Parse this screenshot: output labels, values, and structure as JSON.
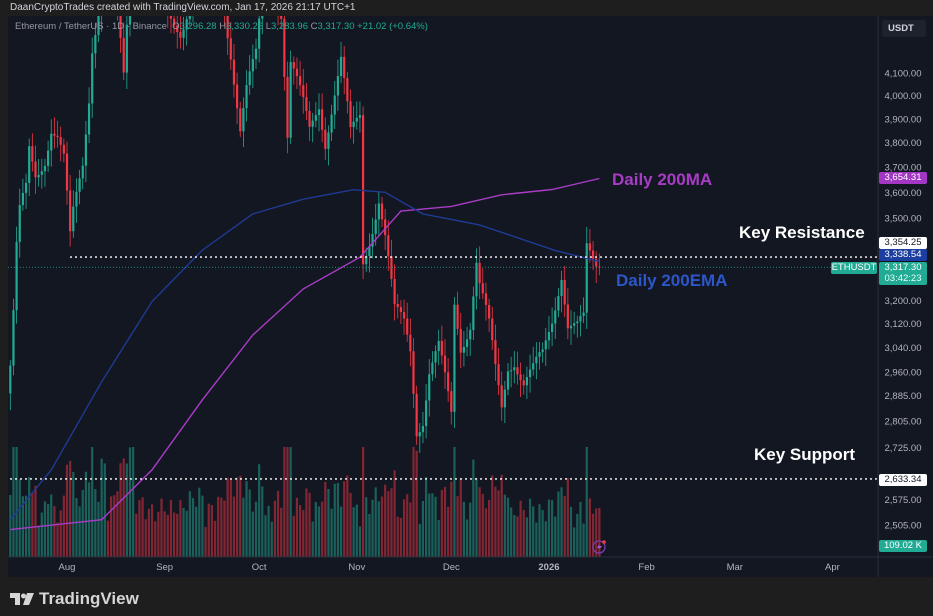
{
  "header": {
    "credit": "DaanCryptoTrades created with TradingView.com, Jan 17, 2026 21:17 UTC+1"
  },
  "legend": {
    "symbol": "Ethereum / TetherUS · 1D · Binance",
    "open_label": "O",
    "open": "3,296.28",
    "high_label": "H",
    "high": "3,330.26",
    "low_label": "L",
    "low": "3,283.96",
    "close_label": "C",
    "close": "3,317.30",
    "change": "+21.02 (+0.64%)"
  },
  "currency_button": "USDT",
  "annotations": {
    "ma200": "Daily 200MA",
    "ema200": "Daily 200EMA",
    "resistance": "Key Resistance",
    "support": "Key Support"
  },
  "badges": {
    "ma200": "3,654.31",
    "resistance": "3,354.25",
    "ema200": "3,338.54",
    "price": "3,317.30",
    "countdown": "03:42:23",
    "symbol": "ETHUSDT",
    "support": "2,633.34",
    "volume": "109.02 K"
  },
  "colors": {
    "up": "#22ab94",
    "down": "#f23645",
    "ma200": "#a83cc6",
    "ema200": "#1f3a93",
    "ema_text": "#2c56c9",
    "background": "#131722"
  },
  "footer": {
    "brand": "TradingView"
  },
  "chart_data": {
    "type": "candlestick",
    "title": "",
    "y_scale": "log",
    "ylim": [
      2460,
      4440
    ],
    "price_ticks": [
      {
        "value": 4100,
        "label": "4,100.00"
      },
      {
        "value": 4000,
        "label": "4,000.00"
      },
      {
        "value": 3900,
        "label": "3,900.00"
      },
      {
        "value": 3800,
        "label": "3,800.00"
      },
      {
        "value": 3700,
        "label": "3,700.00"
      },
      {
        "value": 3600,
        "label": "3,600.00"
      },
      {
        "value": 3500,
        "label": "3,500.00"
      },
      {
        "value": 3200,
        "label": "3,200.00"
      },
      {
        "value": 3120,
        "label": "3,120.00"
      },
      {
        "value": 3040,
        "label": "3,040.00"
      },
      {
        "value": 2960,
        "label": "2,960.00"
      },
      {
        "value": 2885,
        "label": "2,885.00"
      },
      {
        "value": 2805,
        "label": "2,805.00"
      },
      {
        "value": 2725,
        "label": "2,725.00"
      },
      {
        "value": 2575,
        "label": "2,575.00"
      },
      {
        "value": 2505,
        "label": "2,505.00"
      }
    ],
    "time_ticks": [
      {
        "date": "2025-08-01",
        "label": "Aug"
      },
      {
        "date": "2025-09-01",
        "label": "Sep"
      },
      {
        "date": "2025-10-01",
        "label": "Oct"
      },
      {
        "date": "2025-11-01",
        "label": "Nov"
      },
      {
        "date": "2025-12-01",
        "label": "Dec"
      },
      {
        "date": "2026-01-01",
        "label": "2026"
      },
      {
        "date": "2026-02-01",
        "label": "Feb"
      },
      {
        "date": "2026-03-01",
        "label": "Mar"
      },
      {
        "date": "2026-04-01",
        "label": "Apr"
      }
    ],
    "levels": {
      "resistance": 3354.25,
      "support": 2633.34,
      "last_price": 3317.3
    },
    "close_path": [
      [
        "2025-07-14",
        2980
      ],
      [
        "2025-07-15",
        3150
      ],
      [
        "2025-07-16",
        3380
      ],
      [
        "2025-07-17",
        3510
      ],
      [
        "2025-07-19",
        3600
      ],
      [
        "2025-07-20",
        3760
      ],
      [
        "2025-07-22",
        3670
      ],
      [
        "2025-07-25",
        3750
      ],
      [
        "2025-07-27",
        3870
      ],
      [
        "2025-07-29",
        3820
      ],
      [
        "2025-07-31",
        3720
      ],
      [
        "2025-08-02",
        3410
      ],
      [
        "2025-08-03",
        3510
      ],
      [
        "2025-08-06",
        3720
      ],
      [
        "2025-08-08",
        4010
      ],
      [
        "2025-08-09",
        4240
      ],
      [
        "2025-08-11",
        4400
      ],
      [
        "2025-08-13",
        4700
      ],
      [
        "2025-08-16",
        4500
      ],
      [
        "2025-08-19",
        4080
      ],
      [
        "2025-08-22",
        4800
      ],
      [
        "2025-08-27",
        4550
      ],
      [
        "2025-09-01",
        4350
      ],
      [
        "2025-09-06",
        4300
      ],
      [
        "2025-09-13",
        4650
      ],
      [
        "2025-09-19",
        4480
      ],
      [
        "2025-09-22",
        4210
      ],
      [
        "2025-09-25",
        3870
      ],
      [
        "2025-09-27",
        4030
      ],
      [
        "2025-09-30",
        4160
      ],
      [
        "2025-10-02",
        4450
      ],
      [
        "2025-10-05",
        4550
      ],
      [
        "2025-10-08",
        4400
      ],
      [
        "2025-10-10",
        3840
      ],
      [
        "2025-10-11",
        4150
      ],
      [
        "2025-10-14",
        4000
      ],
      [
        "2025-10-17",
        3840
      ],
      [
        "2025-10-20",
        3970
      ],
      [
        "2025-10-22",
        3820
      ],
      [
        "2025-10-27",
        4150
      ],
      [
        "2025-10-30",
        3820
      ],
      [
        "2025-11-02",
        3910
      ],
      [
        "2025-11-03",
        3340
      ],
      [
        "2025-11-05",
        3430
      ],
      [
        "2025-11-08",
        3585
      ],
      [
        "2025-11-10",
        3430
      ],
      [
        "2025-11-13",
        3150
      ],
      [
        "2025-11-16",
        3120
      ],
      [
        "2025-11-18",
        3040
      ],
      [
        "2025-11-20",
        2790
      ],
      [
        "2025-11-22",
        2820
      ],
      [
        "2025-11-24",
        2960
      ],
      [
        "2025-11-27",
        3030
      ],
      [
        "2025-12-01",
        2820
      ],
      [
        "2025-12-02",
        3185
      ],
      [
        "2025-12-04",
        3050
      ],
      [
        "2025-12-07",
        3130
      ],
      [
        "2025-12-09",
        3340
      ],
      [
        "2025-12-10",
        3250
      ],
      [
        "2025-12-13",
        3100
      ],
      [
        "2025-12-15",
        2960
      ],
      [
        "2025-12-17",
        2850
      ],
      [
        "2025-12-19",
        2990
      ],
      [
        "2025-12-21",
        3010
      ],
      [
        "2025-12-24",
        2920
      ],
      [
        "2025-12-27",
        2955
      ],
      [
        "2025-12-30",
        3010
      ],
      [
        "2026-01-02",
        3140
      ],
      [
        "2026-01-05",
        3310
      ],
      [
        "2026-01-07",
        3120
      ],
      [
        "2026-01-10",
        3100
      ],
      [
        "2026-01-12",
        3120
      ],
      [
        "2026-01-13",
        3370
      ],
      [
        "2026-01-15",
        3340
      ],
      [
        "2026-01-17",
        3317.3
      ]
    ],
    "series": [
      {
        "name": "Daily 200MA",
        "points": [
          [
            "2025-07-14",
            2492
          ],
          [
            "2025-08-12",
            2519
          ],
          [
            "2025-08-28",
            2660
          ],
          [
            "2025-09-13",
            2871
          ],
          [
            "2025-09-29",
            3081
          ],
          [
            "2025-10-15",
            3240
          ],
          [
            "2025-11-02",
            3354
          ],
          [
            "2025-11-15",
            3527
          ],
          [
            "2025-12-01",
            3545
          ],
          [
            "2025-12-17",
            3590
          ],
          [
            "2026-01-02",
            3611
          ],
          [
            "2026-01-17",
            3654.31
          ]
        ]
      },
      {
        "name": "Daily 200EMA",
        "points": [
          [
            "2025-07-14",
            2519
          ],
          [
            "2025-07-27",
            2660
          ],
          [
            "2025-08-12",
            2928
          ],
          [
            "2025-08-28",
            3196
          ],
          [
            "2025-09-13",
            3380
          ],
          [
            "2025-09-29",
            3516
          ],
          [
            "2025-10-15",
            3573
          ],
          [
            "2025-10-31",
            3610
          ],
          [
            "2025-11-10",
            3600
          ],
          [
            "2025-11-22",
            3516
          ],
          [
            "2025-12-10",
            3474
          ],
          [
            "2026-01-03",
            3378
          ],
          [
            "2026-01-17",
            3338.54
          ]
        ]
      }
    ],
    "volume_last": "109.02 K"
  }
}
